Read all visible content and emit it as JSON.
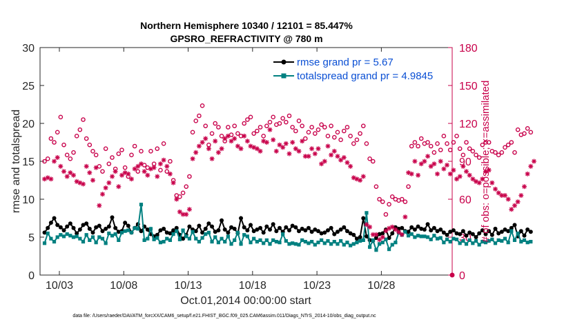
{
  "chart_data": {
    "type": "line",
    "title": "Northern Hemisphere 10340 / 12101 = 85.447%",
    "subtitle": "GPSRO_REFRACTIVITY @ 780 m",
    "xlabel": "Oct.01,2014 00:00:00 start",
    "ylabel": "rmse and totalspread",
    "ylabel_right": "# of obs: o=possible; ×=assimilated",
    "footnote": "data file: /Users/raeder/DAI/ATM_forcXX/CAM6_setup/f.e21.FHIST_BGC.f09_025.CAM6assim.011/Diags_NTrS_2014-10/obs_diag_output.nc",
    "xlim": [
      1.5,
      33.5
    ],
    "ylim": [
      0,
      30
    ],
    "ylim_right": [
      0,
      180
    ],
    "x_ticks": [
      3,
      8,
      13,
      18,
      23,
      28
    ],
    "x_tick_labels": [
      "10/03",
      "10/08",
      "10/13",
      "10/18",
      "10/23",
      "10/28"
    ],
    "y_ticks": [
      0,
      5,
      10,
      15,
      20,
      25,
      30
    ],
    "y_tick_labels": [
      "0",
      "5",
      "10",
      "15",
      "20",
      "25",
      "30"
    ],
    "y_right_ticks": [
      0,
      30,
      60,
      90,
      120,
      150,
      180
    ],
    "y_right_tick_labels": [
      "0",
      "30",
      "60",
      "90",
      "120",
      "150",
      "180"
    ],
    "legend": "top-right",
    "x_step_days": 0.25,
    "series": [
      {
        "name": "rmse grand pr = 5.67",
        "axis": "left",
        "color": "#000000",
        "marker": "filled-circle",
        "values": [
          5.6,
          6.2,
          6.9,
          7.5,
          6.6,
          6.3,
          5.9,
          6.4,
          6.8,
          6.2,
          5.5,
          6.0,
          6.6,
          6.8,
          6.1,
          5.6,
          6.3,
          6.5,
          5.8,
          6.1,
          6.4,
          7.6,
          6.2,
          5.7,
          5.8,
          6.9,
          6.5,
          5.6,
          6.2,
          6.7,
          5.8,
          6.4,
          6.0,
          5.4,
          5.1,
          5.3,
          5.9,
          6.1,
          5.6,
          5.5,
          5.9,
          6.2,
          5.3,
          4.8,
          5.3,
          6.4,
          6.0,
          5.8,
          6.5,
          5.6,
          6.1,
          6.8,
          6.4,
          5.7,
          5.9,
          7.2,
          6.0,
          5.6,
          6.3,
          6.1,
          5.5,
          7.5,
          6.3,
          5.9,
          6.6,
          5.8,
          6.0,
          6.2,
          5.6,
          6.4,
          6.0,
          6.7,
          5.8,
          6.2,
          5.7,
          6.3,
          5.9,
          6.5,
          6.3,
          5.8,
          6.1,
          5.9,
          6.2,
          5.7,
          6.0,
          5.8,
          5.5,
          5.6,
          5.9,
          6.2,
          5.4,
          5.7,
          6.0,
          6.3,
          5.8,
          5.5,
          5.3,
          4.8,
          5.0,
          7.5,
          5.1,
          4.6,
          4.5,
          4.9,
          5.4,
          5.5,
          6.0,
          4.9,
          5.5,
          6.3,
          6.1,
          6.2,
          5.8,
          5.7,
          6.3,
          6.0,
          6.4,
          6.1,
          6.0,
          6.7,
          5.9,
          6.2,
          5.8,
          6.0,
          5.6,
          5.3,
          5.7,
          5.9,
          5.5,
          5.4,
          5.8,
          5.2,
          5.6,
          5.4,
          5.0,
          5.5,
          5.9,
          5.4,
          5.8,
          5.3,
          6.1,
          5.5,
          5.7,
          6.0,
          5.8,
          6.2,
          6.6,
          5.1,
          5.8,
          5.2,
          6.0,
          5.7
        ]
      },
      {
        "name": "totalspread grand pr = 4.9845",
        "axis": "left",
        "color": "#008080",
        "marker": "filled-square",
        "values": [
          4.2,
          5.5,
          4.8,
          4.4,
          5.0,
          5.3,
          5.1,
          5.4,
          5.2,
          5.0,
          5.1,
          4.8,
          4.4,
          5.3,
          4.6,
          5.0,
          4.3,
          5.0,
          4.8,
          4.2,
          5.5,
          5.2,
          5.4,
          4.6,
          5.6,
          5.8,
          5.9,
          5.6,
          6.2,
          6.1,
          9.3,
          4.6,
          4.8,
          6.1,
          4.7,
          4.9,
          4.3,
          4.4,
          4.8,
          4.6,
          5.4,
          5.8,
          4.7,
          5.9,
          5.1,
          4.8,
          5.7,
          4.8,
          4.4,
          4.9,
          5.4,
          5.6,
          4.4,
          5.0,
          4.3,
          4.8,
          4.4,
          5.1,
          4.1,
          4.6,
          5.6,
          4.1,
          5.3,
          5.1,
          4.3,
          4.8,
          4.4,
          4.6,
          4.2,
          4.6,
          4.1,
          4.6,
          4.4,
          4.3,
          5.4,
          4.5,
          4.1,
          4.2,
          4.1,
          4.0,
          4.6,
          4.4,
          4.2,
          4.4,
          4.0,
          4.3,
          4.6,
          4.2,
          4.5,
          4.1,
          4.4,
          4.1,
          4.5,
          4.0,
          4.3,
          3.9,
          4.1,
          4.3,
          4.5,
          4.6,
          8.2,
          3.7,
          4.6,
          3.3,
          4.1,
          4.3,
          4.7,
          3.4,
          4.0,
          4.3,
          5.6,
          5.3,
          5.7,
          5.2,
          5.4,
          5.0,
          5.2,
          5.1,
          5.1,
          5.0,
          4.7,
          5.2,
          4.8,
          4.9,
          4.3,
          4.7,
          4.4,
          4.8,
          4.7,
          4.2,
          4.5,
          4.1,
          4.6,
          4.2,
          4.5,
          4.0,
          4.4,
          4.3,
          4.5,
          4.7,
          4.2,
          4.6,
          4.5,
          4.8,
          4.3,
          5.8,
          4.6,
          5.5,
          4.4,
          4.6,
          4.3,
          4.4
        ]
      },
      {
        "name": "possible",
        "axis": "right",
        "color": "#c8004a",
        "marker": "open-circle",
        "values": [
          90,
          92,
          108,
          105,
          113,
          125,
          103,
          95,
          92,
          97,
          110,
          115,
          123,
          108,
          103,
          98,
          95,
          86,
          82,
          100,
          88,
          93,
          84,
          96,
          99,
          85,
          78,
          95,
          102,
          82,
          98,
          87,
          85,
          98,
          88,
          100,
          83,
          104,
          82,
          90,
          75,
          63,
          62,
          65,
          70,
          78,
          113,
          122,
          126,
          134,
          118,
          103,
          112,
          120,
          117,
          110,
          106,
          117,
          111,
          118,
          112,
          110,
          120,
          123,
          125,
          112,
          114,
          117,
          110,
          118,
          121,
          125,
          119,
          120,
          124,
          121,
          126,
          117,
          114,
          122,
          118,
          108,
          113,
          117,
          112,
          115,
          119,
          117,
          110,
          118,
          109,
          113,
          107,
          114,
          117,
          110,
          104,
          107,
          112,
          118,
          104,
          92,
          90,
          70,
          60,
          58,
          48,
          56,
          62,
          60,
          59,
          60,
          58,
          70,
          102,
          105,
          102,
          108,
          104,
          105,
          102,
          97,
          104,
          99,
          110,
          104,
          99,
          105,
          110,
          100,
          95,
          105,
          100,
          98,
          95,
          93,
          103,
          105,
          105,
          98,
          97,
          95,
          97,
          101,
          103,
          105,
          97,
          115,
          111,
          112,
          116,
          113
        ]
      },
      {
        "name": "assimilated",
        "axis": "right",
        "color": "#c8004a",
        "marker": "asterisk",
        "values": [
          76,
          77,
          76,
          90,
          93,
          86,
          82,
          78,
          81,
          79,
          74,
          73,
          72,
          86,
          81,
          75,
          85,
          55,
          64,
          69,
          73,
          78,
          82,
          70,
          79,
          81,
          80,
          76,
          84,
          86,
          88,
          82,
          79,
          84,
          85,
          78,
          88,
          91,
          86,
          80,
          73,
          60,
          50,
          48,
          48,
          52,
          92,
          97,
          102,
          105,
          108,
          100,
          92,
          106,
          97,
          100,
          108,
          110,
          106,
          108,
          102,
          100,
          110,
          106,
          102,
          101,
          100,
          98,
          106,
          105,
          115,
          107,
          98,
          103,
          101,
          104,
          96,
          105,
          100,
          98,
          106,
          94,
          94,
          100,
          96,
          100,
          88,
          90,
          102,
          95,
          98,
          94,
          91,
          93,
          89,
          86,
          77,
          76,
          75,
          78,
          40,
          38,
          32,
          32,
          28,
          30,
          35,
          37,
          38,
          36,
          34,
          32,
          46,
          81,
          80,
          90,
          79,
          88,
          90,
          94,
          86,
          88,
          80,
          90,
          84,
          87,
          80,
          83,
          76,
          78,
          86,
          82,
          79,
          76,
          74,
          73,
          76,
          82,
          83,
          73,
          68,
          65,
          63,
          63,
          60,
          52,
          55,
          58,
          63,
          70,
          80,
          86,
          90
        ]
      }
    ]
  }
}
